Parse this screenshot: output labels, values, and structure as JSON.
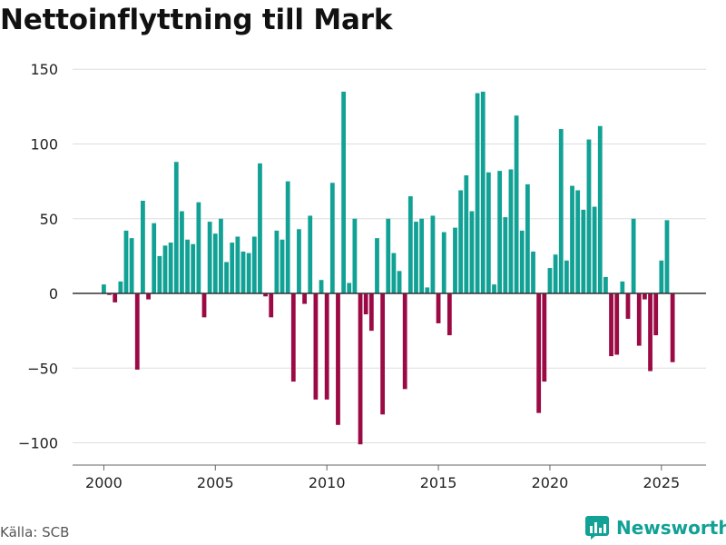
{
  "title": "Nettoinflyttning till Mark",
  "source": "Källa: SCB",
  "brand": "Newsworthy",
  "colors": {
    "positive": "#12a195",
    "negative": "#9b0a44",
    "grid": "#dddddd",
    "zero": "#333333",
    "brand": "#12a195"
  },
  "chart_data": {
    "type": "bar",
    "title": "Nettoinflyttning till Mark",
    "xlabel": "",
    "ylabel": "",
    "ylim": [
      -110,
      155
    ],
    "xlim": [
      1998.6,
      2027.0
    ],
    "yticks": [
      -100,
      -50,
      0,
      50,
      100,
      150
    ],
    "ytick_labels": [
      "−100",
      "−50",
      "0",
      "50",
      "100",
      "150"
    ],
    "xticks": [
      2000,
      2005,
      2010,
      2015,
      2020,
      2025
    ],
    "xtick_labels": [
      "2000",
      "2005",
      "2010",
      "2015",
      "2020",
      "2025"
    ],
    "start_year": 2000,
    "periods_per_year": 4,
    "series": [
      {
        "name": "Nettoinflyttning",
        "values": [
          6,
          -1,
          -6,
          8,
          42,
          37,
          -51,
          62,
          -4,
          47,
          25,
          32,
          34,
          88,
          55,
          36,
          33,
          61,
          -16,
          48,
          40,
          50,
          21,
          34,
          38,
          28,
          27,
          38,
          87,
          -2,
          -16,
          42,
          36,
          75,
          -59,
          43,
          -7,
          52,
          -71,
          9,
          -71,
          74,
          -88,
          135,
          7,
          50,
          -101,
          -14,
          -25,
          37,
          -81,
          50,
          27,
          15,
          -64,
          65,
          48,
          50,
          4,
          52,
          -20,
          41,
          -28,
          44,
          69,
          79,
          55,
          134,
          135,
          81,
          6,
          82,
          51,
          83,
          119,
          42,
          73,
          28,
          -80,
          -59,
          17,
          26,
          110,
          22,
          72,
          69,
          56,
          103,
          58,
          112,
          11,
          -42,
          -41,
          8,
          -17,
          50,
          -35,
          -4,
          -52,
          -28,
          22,
          49,
          -46
        ]
      }
    ]
  }
}
